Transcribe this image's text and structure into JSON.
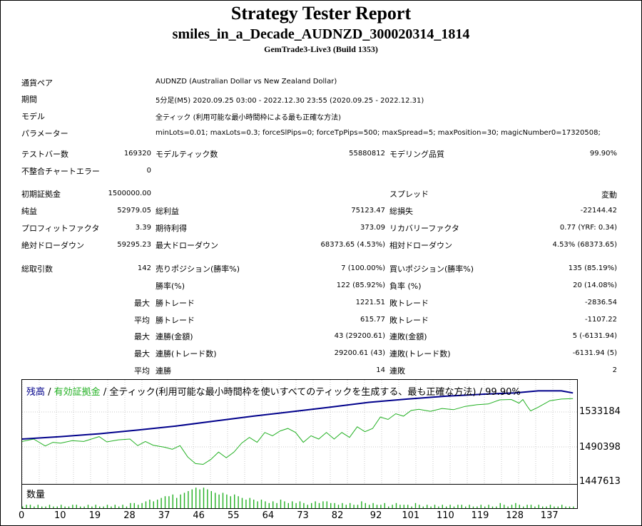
{
  "header": {
    "title": "Strategy Tester Report",
    "expert": "smiles_in_a_Decade_AUDNZD_300020314_1814",
    "server": "GemTrade3-Live3 (Build 1353)"
  },
  "settings": [
    {
      "label": "通貨ペア",
      "value": "AUDNZD (Australian Dollar vs New Zealand Dollar)"
    },
    {
      "label": "期間",
      "value": "5分足(M5) 2020.09.25 03:00 - 2022.12.30 23:55 (2020.09.25 - 2022.12.31)"
    },
    {
      "label": "モデル",
      "value": "全ティック (利用可能な最小時間枠による最も正確な方法)"
    },
    {
      "label": "パラメーター",
      "value": "minLots=0.01; maxLots=0.3; forceSlPips=0; forceTpPips=500; maxSpread=5; maxPosition=30; magicNumber0=17320508;"
    }
  ],
  "stats": {
    "bars_label": "テストバー数",
    "bars": "169320",
    "ticks_label": "モデルティック数",
    "ticks": "55880812",
    "quality_label": "モデリング品質",
    "quality": "99.90%",
    "mismatch_label": "不整合チャートエラー",
    "mismatch": "0",
    "deposit_label": "初期証拠金",
    "deposit": "1500000.00",
    "spread_label": "スプレッド",
    "spread": "変動",
    "net_label": "純益",
    "net": "52979.05",
    "gross_profit_label": "総利益",
    "gross_profit": "75123.47",
    "gross_loss_label": "総損失",
    "gross_loss": "-22144.42",
    "pf_label": "プロフィットファクタ",
    "pf": "3.39",
    "expected_label": "期待利得",
    "expected": "373.09",
    "recovery_label": "リカバリーファクタ",
    "recovery": "0.77 (YRF: 0.34)",
    "abs_dd_label": "絶対ドローダウン",
    "abs_dd": "59295.23",
    "max_dd_label": "最大ドローダウン",
    "max_dd": "68373.65 (4.53%)",
    "rel_dd_label": "相対ドローダウン",
    "rel_dd": "4.53% (68373.65)",
    "total_trades_label": "総取引数",
    "total_trades": "142",
    "short_label": "売りポジション(勝率%)",
    "short": "7 (100.00%)",
    "long_label": "買いポジション(勝率%)",
    "long": "135 (85.19%)",
    "win_label": "勝率(%)",
    "win": "122 (85.92%)",
    "loss_label": "負率 (%)",
    "loss": "20 (14.08%)",
    "max_word": "最大",
    "avg_word": "平均",
    "largest_win_label": "勝トレード",
    "largest_win": "1221.51",
    "largest_loss_label": "敗トレード",
    "largest_loss": "-2836.54",
    "avg_win_label": "勝トレード",
    "avg_win": "615.77",
    "avg_loss_label": "敗トレード",
    "avg_loss": "-1107.22",
    "max_cons_win_label": "連勝(金額)",
    "max_cons_win": "43 (29200.61)",
    "max_cons_loss_label": "連敗(金額)",
    "max_cons_loss": "5 (-6131.94)",
    "max_cons_profit_label": "連勝(トレード数)",
    "max_cons_profit": "29200.61 (43)",
    "max_cons_lossamt_label": "連敗(トレード数)",
    "max_cons_lossamt": "-6131.94 (5)",
    "avg_cons_win_label": "連勝",
    "avg_cons_win": "14",
    "avg_cons_loss_label": "連敗",
    "avg_cons_loss": "2"
  },
  "chart_data": {
    "type": "line",
    "legend": {
      "balance": "残高",
      "sep1": " / ",
      "equity": "有効証拠金",
      "sep2": " / ",
      "rest": "全ティック(利用可能な最小時間枠を使いすべてのティックを生成する、最も正確な方法) / 99.90%"
    },
    "y_ticks": [
      "1533184",
      "1490398",
      "1447613"
    ],
    "x_ticks": [
      "0",
      "10",
      "19",
      "28",
      "37",
      "46",
      "55",
      "64",
      "73",
      "82",
      "92",
      "101",
      "110",
      "119",
      "128",
      "137"
    ],
    "volume_title": "数量",
    "colors": {
      "balance": "#00008b",
      "equity": "#22b022",
      "volume": "#22b022"
    },
    "balance": [
      [
        0,
        1500000
      ],
      [
        10,
        1503000
      ],
      [
        20,
        1506500
      ],
      [
        30,
        1511000
      ],
      [
        40,
        1516000
      ],
      [
        50,
        1522000
      ],
      [
        60,
        1528000
      ],
      [
        70,
        1533500
      ],
      [
        80,
        1539000
      ],
      [
        90,
        1545000
      ],
      [
        100,
        1549000
      ],
      [
        110,
        1552500
      ],
      [
        120,
        1555000
      ],
      [
        128,
        1556500
      ],
      [
        134,
        1559000
      ],
      [
        140,
        1559000
      ],
      [
        143,
        1556500
      ]
    ],
    "equity": [
      [
        0,
        1497000
      ],
      [
        3,
        1500000
      ],
      [
        6,
        1491500
      ],
      [
        8,
        1496000
      ],
      [
        10,
        1495000
      ],
      [
        13,
        1498000
      ],
      [
        16,
        1497000
      ],
      [
        20,
        1503000
      ],
      [
        22,
        1496500
      ],
      [
        25,
        1499000
      ],
      [
        28,
        1500000
      ],
      [
        30,
        1492000
      ],
      [
        32,
        1497000
      ],
      [
        34,
        1492500
      ],
      [
        37,
        1490000
      ],
      [
        39,
        1487500
      ],
      [
        41,
        1492000
      ],
      [
        43,
        1478000
      ],
      [
        45,
        1470000
      ],
      [
        47,
        1469000
      ],
      [
        49,
        1475000
      ],
      [
        51,
        1484000
      ],
      [
        53,
        1477000
      ],
      [
        55,
        1484000
      ],
      [
        57,
        1495000
      ],
      [
        59,
        1502000
      ],
      [
        61,
        1496000
      ],
      [
        63,
        1508000
      ],
      [
        65,
        1504000
      ],
      [
        67,
        1510000
      ],
      [
        69,
        1513000
      ],
      [
        71,
        1508000
      ],
      [
        73,
        1496000
      ],
      [
        75,
        1504000
      ],
      [
        77,
        1500000
      ],
      [
        79,
        1508000
      ],
      [
        81,
        1500000
      ],
      [
        83,
        1508000
      ],
      [
        85,
        1502000
      ],
      [
        87,
        1515000
      ],
      [
        89,
        1509000
      ],
      [
        91,
        1513000
      ],
      [
        93,
        1527000
      ],
      [
        95,
        1524000
      ],
      [
        97,
        1531000
      ],
      [
        99,
        1528000
      ],
      [
        101,
        1535000
      ],
      [
        103,
        1536500
      ],
      [
        106,
        1534000
      ],
      [
        109,
        1537500
      ],
      [
        112,
        1536000
      ],
      [
        115,
        1540000
      ],
      [
        118,
        1542000
      ],
      [
        121,
        1543000
      ],
      [
        124,
        1548000
      ],
      [
        127,
        1548500
      ],
      [
        129,
        1544000
      ],
      [
        130,
        1548500
      ],
      [
        131,
        1541000
      ],
      [
        132,
        1534500
      ],
      [
        134,
        1539000
      ],
      [
        137,
        1547000
      ],
      [
        140,
        1549000
      ],
      [
        143,
        1549500
      ]
    ],
    "volume": [
      1,
      2,
      2,
      1,
      2,
      1,
      1,
      2,
      1,
      1,
      2,
      1,
      1,
      2,
      2,
      1,
      1,
      2,
      1,
      2,
      1,
      1,
      2,
      1,
      2,
      1,
      2,
      1,
      3,
      3,
      2,
      3,
      4,
      5,
      4,
      5,
      6,
      7,
      7,
      8,
      6,
      8,
      9,
      10,
      11,
      12,
      11,
      12,
      11,
      10,
      9,
      8,
      9,
      8,
      7,
      8,
      7,
      6,
      5,
      6,
      5,
      4,
      5,
      4,
      3,
      4,
      3,
      5,
      4,
      3,
      4,
      3,
      4,
      3,
      2,
      3,
      4,
      3,
      4,
      4,
      3,
      3,
      2,
      3,
      2,
      3,
      2,
      2,
      4,
      3,
      2,
      3,
      2,
      2,
      3,
      1,
      2,
      3,
      2,
      2,
      2,
      1,
      3,
      2,
      1,
      2,
      1,
      2,
      1,
      2,
      1,
      2,
      1,
      2,
      2,
      1,
      2,
      1,
      1,
      2,
      1,
      2,
      1,
      1,
      3,
      2,
      1,
      2,
      3,
      2,
      1,
      2,
      2,
      1,
      2,
      1,
      1,
      2,
      1,
      1,
      2,
      1,
      1,
      1
    ]
  }
}
